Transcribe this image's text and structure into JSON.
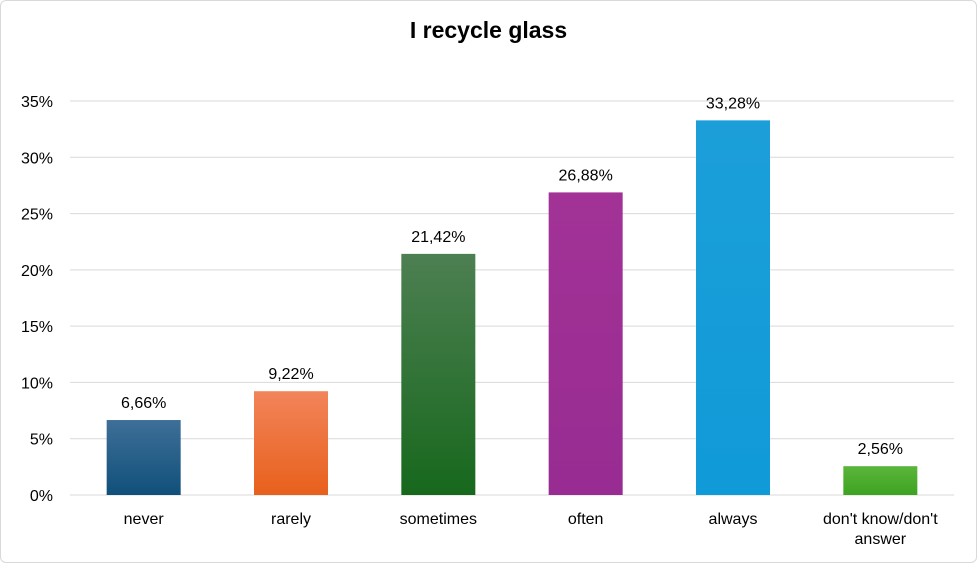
{
  "chart_data": {
    "type": "bar",
    "title": "I recycle glass",
    "xlabel": "",
    "ylabel": "",
    "ylim": [
      0,
      35
    ],
    "yticks": [
      0,
      5,
      10,
      15,
      20,
      25,
      30,
      35
    ],
    "ytick_labels": [
      "0%",
      "5%",
      "10%",
      "15%",
      "20%",
      "25%",
      "30%",
      "35%"
    ],
    "grid": true,
    "legend": "none",
    "categories": [
      [
        "never"
      ],
      [
        "rarely"
      ],
      [
        "sometimes"
      ],
      [
        "often"
      ],
      [
        "always"
      ],
      [
        "don't know/don't",
        "answer"
      ]
    ],
    "values": [
      6.66,
      9.22,
      21.42,
      26.88,
      33.28,
      2.56
    ],
    "value_labels": [
      "6,66%",
      "9,22%",
      "21,42%",
      "26,88%",
      "33,28%",
      "2,56%"
    ],
    "colors": [
      [
        "#3e6f98",
        "#10507a"
      ],
      [
        "#f2845a",
        "#e8601c"
      ],
      [
        "#4d7f52",
        "#17681d"
      ],
      [
        "#a23296",
        "#982c92"
      ],
      [
        "#1c9fd9",
        "#109ad8"
      ],
      [
        "#5bb53c",
        "#3ea321"
      ]
    ],
    "gridline_color": "#d9d9d9",
    "axis_color": "#d9d9d9"
  }
}
